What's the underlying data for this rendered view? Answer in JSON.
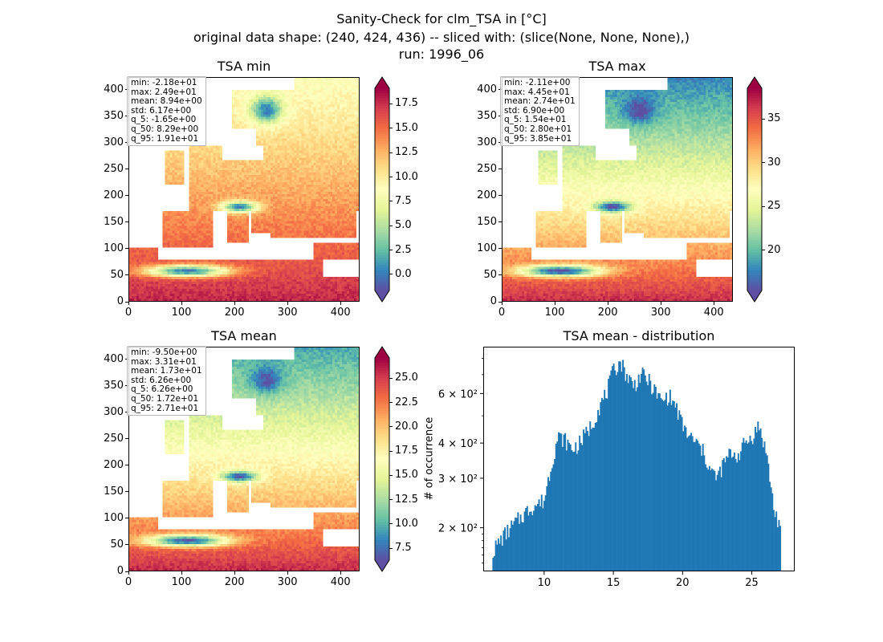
{
  "figure": {
    "title_line1": "Sanity-Check for clm_TSA in [°C]",
    "title_line2": "original data shape: (240, 424, 436) -- sliced with: (slice(None, None, None),)",
    "title_line3": "run: 1996_06"
  },
  "colormap": [
    "#5e4fa2",
    "#3288bd",
    "#66c2a5",
    "#abdda4",
    "#e6f598",
    "#ffffbf",
    "#fee08b",
    "#fdae61",
    "#f46d43",
    "#d53e4f",
    "#9e0142"
  ],
  "map_axes": {
    "x_ticks": [
      "0",
      "100",
      "200",
      "300",
      "400"
    ],
    "y_ticks": [
      "0",
      "50",
      "100",
      "150",
      "200",
      "250",
      "300",
      "350",
      "400"
    ],
    "x_range": [
      0,
      436
    ],
    "y_range": [
      0,
      424
    ]
  },
  "panels": [
    {
      "id": "tsa-min",
      "title": "TSA min",
      "stats": [
        "min: -2.18e+01",
        "max: 2.49e+01",
        "mean: 8.94e+00",
        "std: 6.17e+00",
        "q_5: -1.65e+00",
        "q_50: 8.29e+00",
        "q_95: 1.91e+01"
      ],
      "cbar_ticks": [
        "0.0",
        "2.5",
        "5.0",
        "7.5",
        "10.0",
        "12.5",
        "15.0",
        "17.5"
      ],
      "cbar_tick_values": [
        0.0,
        2.5,
        5.0,
        7.5,
        10.0,
        12.5,
        15.0,
        17.5
      ],
      "cbar_range": [
        -1.65,
        19.1
      ],
      "field": {
        "south": 19,
        "north": 8,
        "mountain": 0,
        "sea_land": 11
      }
    },
    {
      "id": "tsa-max",
      "title": "TSA max",
      "stats": [
        "min: -2.11e+00",
        "max: 4.45e+01",
        "mean: 2.74e+01",
        "std: 6.90e+00",
        "q_5: 1.54e+01",
        "q_50: 2.80e+01",
        "q_95: 3.85e+01"
      ],
      "cbar_ticks": [
        "20",
        "25",
        "30",
        "35"
      ],
      "cbar_tick_values": [
        20,
        25,
        30,
        35
      ],
      "cbar_range": [
        15.4,
        38.5
      ],
      "field": {
        "south": 38.5,
        "north": 16,
        "mountain": 15,
        "sea_land": 27
      }
    },
    {
      "id": "tsa-mean",
      "title": "TSA mean",
      "stats": [
        "min: -9.50e+00",
        "max: 3.31e+01",
        "mean: 1.73e+01",
        "std: 6.26e+00",
        "q_5: 6.26e+00",
        "q_50: 1.72e+01",
        "q_95: 2.71e+01"
      ],
      "cbar_ticks": [
        "7.5",
        "10.0",
        "12.5",
        "15.0",
        "17.5",
        "20.0",
        "22.5",
        "25.0"
      ],
      "cbar_tick_values": [
        7.5,
        10.0,
        12.5,
        15.0,
        17.5,
        20.0,
        22.5,
        25.0
      ],
      "cbar_range": [
        6.26,
        27.1
      ],
      "field": {
        "south": 27,
        "north": 8,
        "mountain": 6.5,
        "sea_land": 18
      }
    }
  ],
  "chart_data": {
    "type": "bar",
    "title": "TSA mean - distribution",
    "xlabel": "",
    "ylabel": "# of occurrence",
    "yscale": "log",
    "xlim": [
      5.6,
      28.1
    ],
    "ylim": [
      140,
      880
    ],
    "x_ticks": [
      10,
      15,
      20,
      25
    ],
    "x_tick_labels": [
      "10",
      "15",
      "20",
      "25"
    ],
    "y_ticks": [
      200,
      300,
      400,
      600
    ],
    "y_tick_labels": [
      "2 × 10²",
      "3 × 10²",
      "4 × 10²",
      "6 × 10²"
    ],
    "bar_color": "#1f77b4",
    "bin_range": [
      6.26,
      27.1
    ],
    "profile_x": [
      6.3,
      7.0,
      8.0,
      9.0,
      10.0,
      10.5,
      11.0,
      11.5,
      12.0,
      12.5,
      13.0,
      13.5,
      14.0,
      14.5,
      15.0,
      15.5,
      16.0,
      16.5,
      17.0,
      17.5,
      18.0,
      18.5,
      19.0,
      19.5,
      20.0,
      20.5,
      21.0,
      21.5,
      22.0,
      22.5,
      23.0,
      23.5,
      24.0,
      24.5,
      25.0,
      25.5,
      26.0,
      26.3,
      26.6,
      27.1
    ],
    "profile_y": [
      165,
      185,
      210,
      235,
      250,
      330,
      420,
      410,
      380,
      395,
      430,
      470,
      540,
      600,
      720,
      780,
      690,
      640,
      700,
      670,
      610,
      560,
      590,
      540,
      460,
      420,
      400,
      370,
      320,
      300,
      340,
      370,
      360,
      400,
      420,
      460,
      380,
      300,
      230,
      200
    ]
  }
}
